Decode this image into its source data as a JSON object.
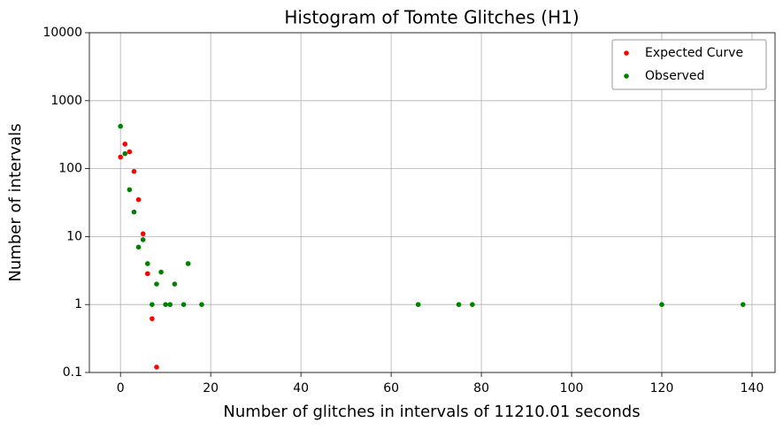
{
  "chart_data": {
    "type": "scatter",
    "title": "Histogram of Tomte Glitches (H1)",
    "xlabel": "Number of glitches in intervals of 11210.01 seconds",
    "ylabel": "Number of intervals",
    "xlim": [
      -6.9,
      145.1
    ],
    "xticks": [
      0,
      20,
      40,
      60,
      80,
      100,
      120,
      140
    ],
    "ylim": [
      0.1,
      10000
    ],
    "yticks": [
      0.1,
      1,
      10,
      100,
      1000,
      10000
    ],
    "log_y": true,
    "grid": true,
    "legend": "upper right",
    "series": [
      {
        "name": "Expected Curve",
        "color": "#ff0000",
        "x": [
          0,
          1,
          2,
          3,
          4,
          5,
          6,
          7,
          8
        ],
        "values": [
          148,
          230,
          177,
          91,
          35,
          11,
          2.85,
          0.62,
          0.12
        ]
      },
      {
        "name": "Observed",
        "color": "#008000",
        "x": [
          0,
          1,
          2,
          3,
          4,
          5,
          6,
          7,
          8,
          9,
          10,
          11,
          12,
          14,
          15,
          18,
          66,
          75,
          78,
          120,
          138
        ],
        "values": [
          420,
          166,
          49,
          23,
          7,
          9,
          4,
          1,
          2,
          3,
          1,
          1,
          2,
          1,
          4,
          1,
          1,
          1,
          1,
          1,
          1
        ]
      }
    ]
  }
}
